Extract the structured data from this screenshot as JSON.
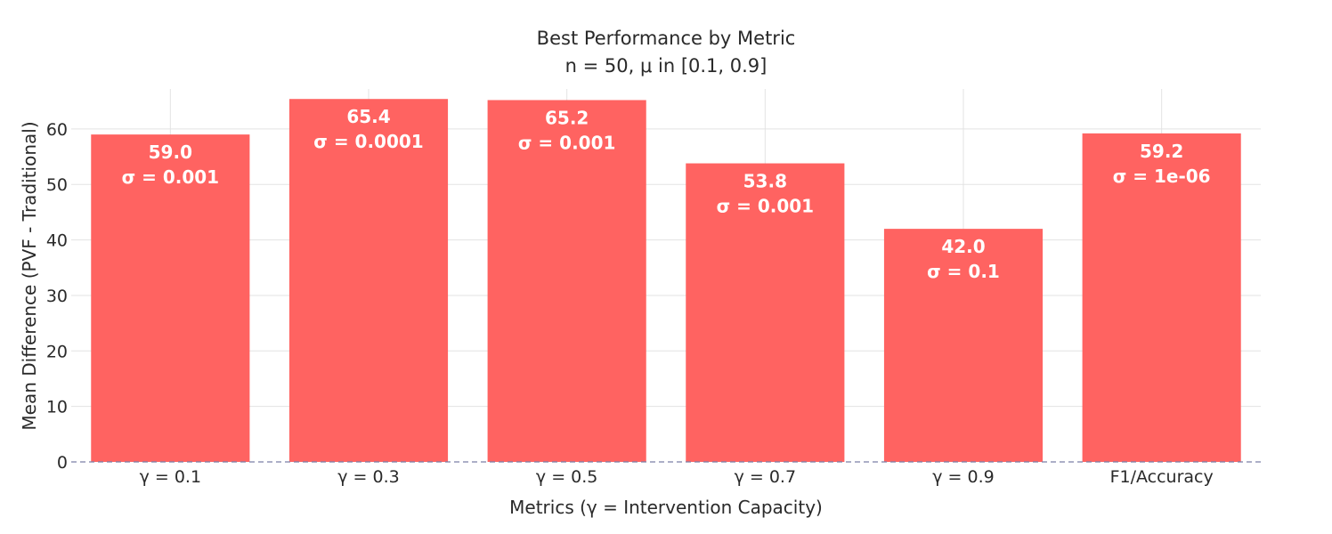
{
  "chart_data": {
    "type": "bar",
    "title": "Best Performance by Metric",
    "subtitle": "n = 50, μ in [0.1, 0.9]",
    "xlabel": "Metrics (γ = Intervention Capacity)",
    "ylabel": "Mean Difference (PVF - Traditional)",
    "categories": [
      "γ = 0.1",
      "γ = 0.3",
      "γ = 0.5",
      "γ = 0.7",
      "γ = 0.9",
      "F1/Accuracy"
    ],
    "values": [
      59.0,
      65.4,
      65.2,
      53.8,
      42.0,
      59.2
    ],
    "value_labels": [
      "59.0",
      "65.4",
      "65.2",
      "53.8",
      "42.0",
      "59.2"
    ],
    "sigma_labels": [
      "σ = 0.001",
      "σ = 0.0001",
      "σ = 0.001",
      "σ = 0.001",
      "σ = 0.1",
      "σ = 1e-06"
    ],
    "ylim": [
      0,
      68
    ],
    "yticks": [
      0,
      10,
      20,
      30,
      40,
      50,
      60
    ],
    "grid": true,
    "zero_line": "dashed",
    "colors": {
      "bar": "#ff6361",
      "grid": "#e3e3e3",
      "zero_line": "#7a7fa8",
      "bar_text": "#ffffff",
      "text": "#2a2a2a"
    }
  }
}
